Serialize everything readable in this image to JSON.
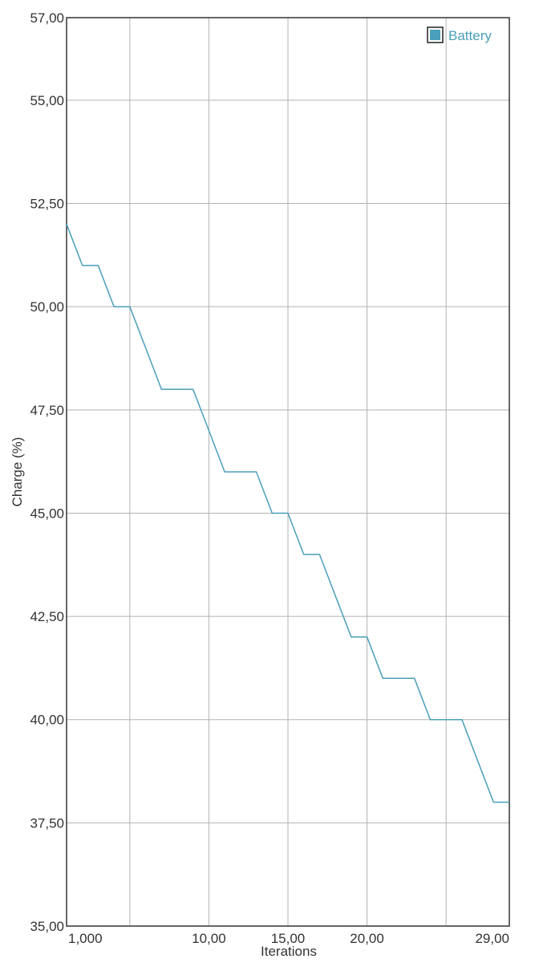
{
  "chart_data": {
    "type": "line",
    "title": "",
    "xlabel": "Iterations",
    "ylabel": "Charge (%)",
    "xlim": [
      0,
      28
    ],
    "ylim": [
      35,
      57
    ],
    "x_ticks": [
      {
        "value": 0,
        "label": "1,000"
      },
      {
        "value": 9,
        "label": "10,00"
      },
      {
        "value": 14,
        "label": "15,00"
      },
      {
        "value": 19,
        "label": "20,00"
      },
      {
        "value": 28,
        "label": "29,00"
      }
    ],
    "x_gridlines": [
      0,
      4,
      9,
      14,
      19,
      24,
      28
    ],
    "y_ticks": [
      {
        "value": 35,
        "label": "35,00"
      },
      {
        "value": 37.5,
        "label": "37,50"
      },
      {
        "value": 40,
        "label": "40,00"
      },
      {
        "value": 42.5,
        "label": "42,50"
      },
      {
        "value": 45,
        "label": "45,00"
      },
      {
        "value": 47.5,
        "label": "47,50"
      },
      {
        "value": 50,
        "label": "50,00"
      },
      {
        "value": 52.5,
        "label": "52,50"
      },
      {
        "value": 55,
        "label": "55,00"
      },
      {
        "value": 57,
        "label": "57,00"
      }
    ],
    "grid": true,
    "legend_position": "top-right",
    "series": [
      {
        "name": "Battery",
        "color": "#4a9fba",
        "x": [
          0,
          1,
          2,
          3,
          4,
          5,
          6,
          7,
          8,
          9,
          10,
          11,
          12,
          13,
          14,
          15,
          16,
          17,
          18,
          19,
          20,
          21,
          22,
          23,
          24,
          25,
          26,
          27,
          28
        ],
        "y": [
          52,
          51,
          51,
          50,
          50,
          49,
          48,
          48,
          48,
          47,
          46,
          46,
          46,
          45,
          45,
          44,
          44,
          43,
          42,
          42,
          41,
          41,
          41,
          40,
          40,
          40,
          39,
          38,
          38
        ]
      }
    ]
  }
}
